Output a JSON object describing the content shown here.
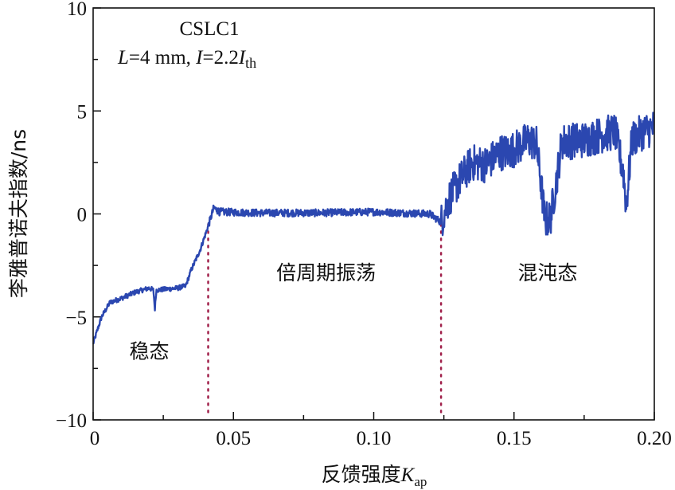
{
  "chart_data": {
    "type": "line",
    "title": "CSLC1",
    "subtitle": {
      "L": "L",
      "eq1": "=4 mm, ",
      "I": "I",
      "eq2": "=2.2",
      "I2": "I",
      "sub": "th"
    },
    "xlabel": {
      "main": "反馈强度",
      "var": "K",
      "sub": "ap"
    },
    "ylabel": "李雅普诺夫指数/ns",
    "xlim": [
      0,
      0.2
    ],
    "ylim": [
      -10,
      10
    ],
    "xticks": [
      "0",
      "0.05",
      "0.10",
      "0.15",
      "0.20"
    ],
    "xtick_values": [
      0,
      0.05,
      0.1,
      0.15,
      0.2
    ],
    "yticks": [
      "10",
      "5",
      "0",
      "−5",
      "−10"
    ],
    "ytick_values": [
      10,
      5,
      0,
      -5,
      -10
    ],
    "grid": false,
    "line_color": "#2b47b0",
    "divider_color": "#a0204a",
    "dividers": [
      0.041,
      0.124
    ],
    "regions": [
      {
        "label": "稳态",
        "x": 0.02,
        "y": -7
      },
      {
        "label": "倍周期振荡",
        "x": 0.083,
        "y": -3.2
      },
      {
        "label": "混沌态",
        "x": 0.162,
        "y": -3.2
      }
    ],
    "series": [
      {
        "name": "Lyapunov exponent",
        "points": [
          [
            0,
            -6.3
          ],
          [
            0.003,
            -5.0
          ],
          [
            0.006,
            -4.3
          ],
          [
            0.01,
            -4.1
          ],
          [
            0.015,
            -3.8
          ],
          [
            0.02,
            -3.6
          ],
          [
            0.0215,
            -3.7
          ],
          [
            0.022,
            -4.6
          ],
          [
            0.0225,
            -3.7
          ],
          [
            0.03,
            -3.6
          ],
          [
            0.033,
            -3.5
          ],
          [
            0.035,
            -2.7
          ],
          [
            0.038,
            -1.8
          ],
          [
            0.041,
            -0.6
          ],
          [
            0.043,
            0.3
          ],
          [
            0.045,
            0.1
          ],
          [
            0.06,
            0.05
          ],
          [
            0.08,
            0.05
          ],
          [
            0.1,
            0.1
          ],
          [
            0.11,
            0.05
          ],
          [
            0.12,
            0.0
          ],
          [
            0.124,
            -0.4
          ],
          [
            0.127,
            0.8
          ],
          [
            0.13,
            1.5
          ],
          [
            0.135,
            2.5
          ],
          [
            0.14,
            2.4
          ],
          [
            0.145,
            3.0
          ],
          [
            0.148,
            3.0
          ],
          [
            0.152,
            3.3
          ],
          [
            0.155,
            3.6
          ],
          [
            0.158,
            3.4
          ],
          [
            0.16,
            1.0
          ],
          [
            0.161,
            -0.3
          ],
          [
            0.163,
            -0.2
          ],
          [
            0.165,
            1.5
          ],
          [
            0.167,
            3.5
          ],
          [
            0.175,
            3.6
          ],
          [
            0.18,
            3.8
          ],
          [
            0.186,
            4.0
          ],
          [
            0.189,
            2.0
          ],
          [
            0.19,
            0.4
          ],
          [
            0.192,
            3.6
          ],
          [
            0.196,
            4.0
          ],
          [
            0.2,
            4.2
          ]
        ]
      }
    ]
  }
}
